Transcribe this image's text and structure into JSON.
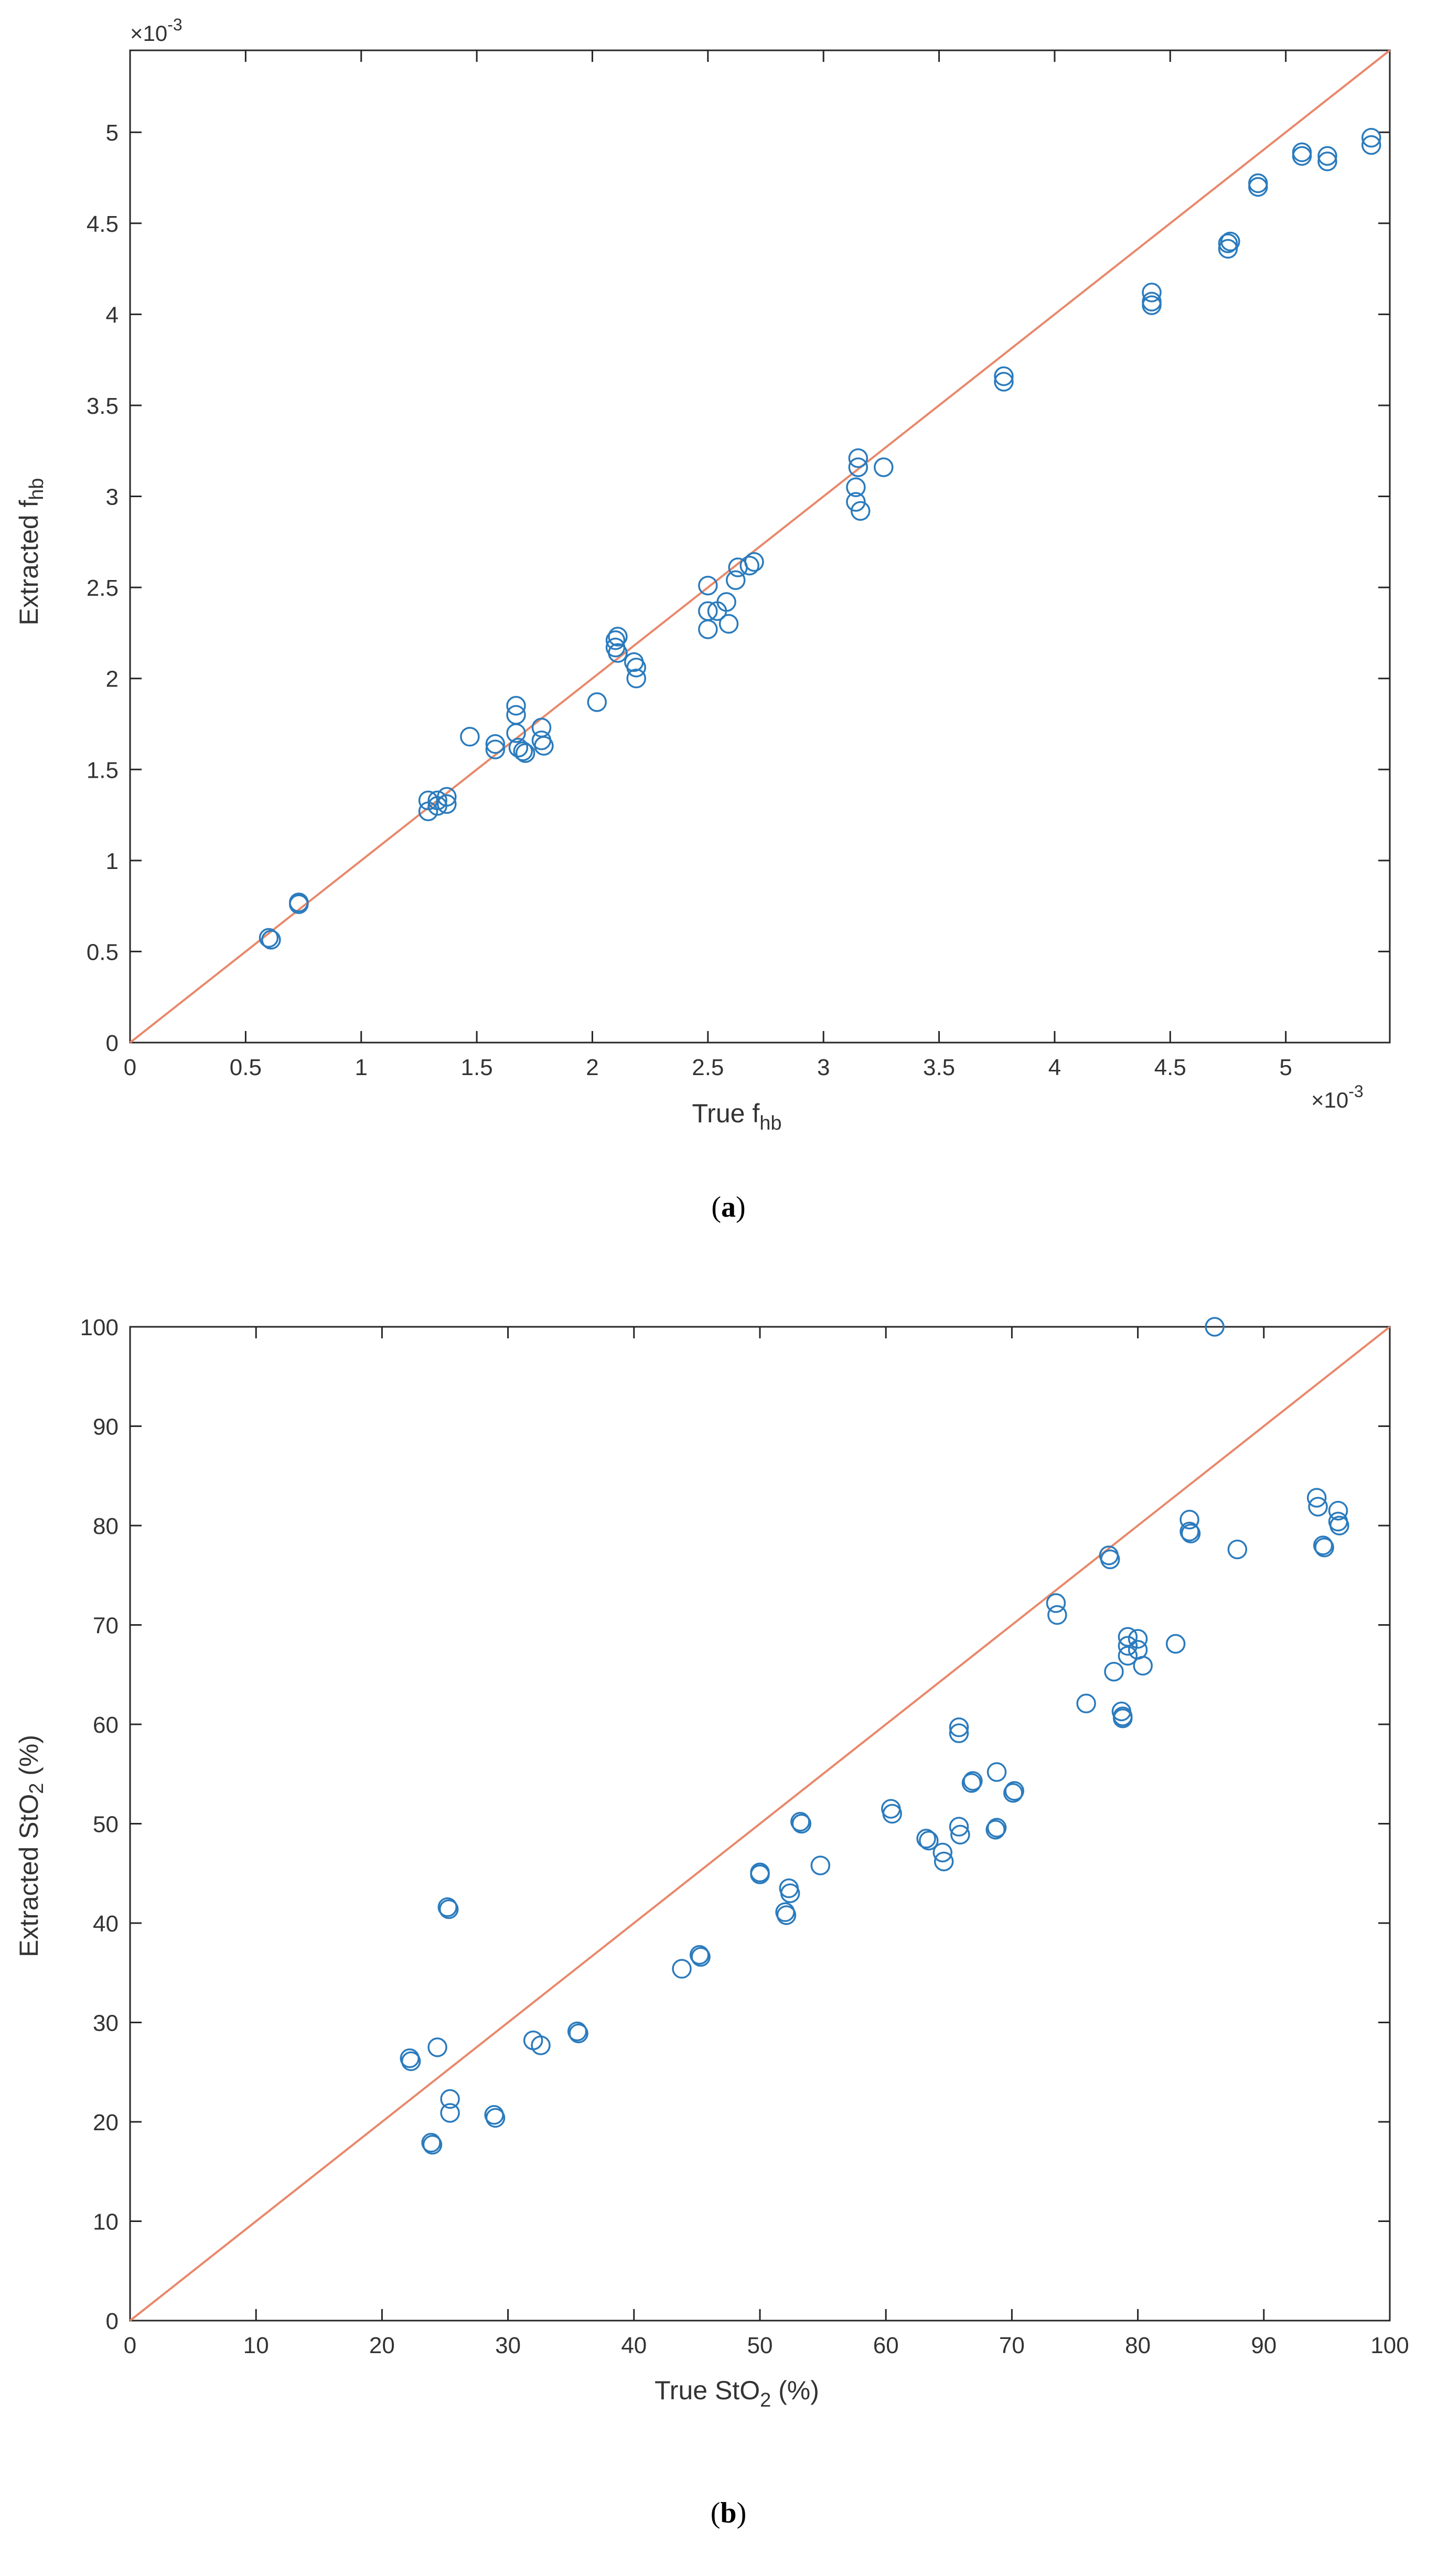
{
  "chart_data": [
    {
      "id": "a",
      "type": "scatter",
      "caption_prefix": "(",
      "caption_letter": "a",
      "caption_suffix": ")",
      "xlabel_main": "True f",
      "xlabel_sub": "hb",
      "ylabel_main": "Extracted f",
      "ylabel_sub": "hb",
      "x_exponent_base": "×10",
      "x_exponent_power": "-3",
      "y_exponent_base": "×10",
      "y_exponent_power": "-3",
      "xlim": [
        0,
        5.45
      ],
      "ylim": [
        0,
        5.45
      ],
      "xticks": [
        0,
        0.5,
        1,
        1.5,
        2,
        2.5,
        3,
        3.5,
        4,
        4.5,
        5
      ],
      "xtick_labels": [
        "0",
        "0.5",
        "1",
        "1.5",
        "2",
        "2.5",
        "3",
        "3.5",
        "4",
        "4.5",
        "5"
      ],
      "yticks": [
        0,
        0.5,
        1,
        1.5,
        2,
        2.5,
        3,
        3.5,
        4,
        4.5,
        5
      ],
      "ytick_labels": [
        "0",
        "0.5",
        "1",
        "1.5",
        "2",
        "2.5",
        "3",
        "3.5",
        "4",
        "4.5",
        "5"
      ],
      "identity_line": [
        [
          0,
          0
        ],
        [
          5.45,
          5.45
        ]
      ],
      "marker_color": "#2b7bbd",
      "line_color": "#e8886a",
      "points": [
        [
          0.6,
          0.575
        ],
        [
          0.61,
          0.565
        ],
        [
          0.73,
          0.77
        ],
        [
          0.73,
          0.76
        ],
        [
          1.29,
          1.33
        ],
        [
          1.29,
          1.27
        ],
        [
          1.33,
          1.3
        ],
        [
          1.33,
          1.33
        ],
        [
          1.37,
          1.35
        ],
        [
          1.37,
          1.31
        ],
        [
          1.47,
          1.68
        ],
        [
          1.58,
          1.64
        ],
        [
          1.58,
          1.61
        ],
        [
          1.67,
          1.85
        ],
        [
          1.67,
          1.8
        ],
        [
          1.67,
          1.7
        ],
        [
          1.68,
          1.62
        ],
        [
          1.7,
          1.6
        ],
        [
          1.71,
          1.59
        ],
        [
          1.78,
          1.73
        ],
        [
          1.78,
          1.66
        ],
        [
          1.79,
          1.63
        ],
        [
          2.02,
          1.87
        ],
        [
          2.1,
          2.21
        ],
        [
          2.1,
          2.17
        ],
        [
          2.11,
          2.23
        ],
        [
          2.11,
          2.14
        ],
        [
          2.18,
          2.09
        ],
        [
          2.19,
          2.06
        ],
        [
          2.19,
          2.0
        ],
        [
          2.5,
          2.51
        ],
        [
          2.5,
          2.37
        ],
        [
          2.5,
          2.27
        ],
        [
          2.54,
          2.37
        ],
        [
          2.58,
          2.42
        ],
        [
          2.59,
          2.3
        ],
        [
          2.62,
          2.54
        ],
        [
          2.63,
          2.61
        ],
        [
          2.68,
          2.62
        ],
        [
          2.7,
          2.64
        ],
        [
          3.14,
          3.05
        ],
        [
          3.14,
          2.97
        ],
        [
          3.15,
          3.21
        ],
        [
          3.15,
          3.16
        ],
        [
          3.16,
          2.92
        ],
        [
          3.26,
          3.16
        ],
        [
          3.78,
          3.66
        ],
        [
          3.78,
          3.63
        ],
        [
          4.42,
          4.12
        ],
        [
          4.42,
          4.07
        ],
        [
          4.42,
          4.05
        ],
        [
          4.75,
          4.39
        ],
        [
          4.75,
          4.36
        ],
        [
          4.76,
          4.4
        ],
        [
          4.88,
          4.72
        ],
        [
          4.88,
          4.7
        ],
        [
          5.07,
          4.89
        ],
        [
          5.07,
          4.87
        ],
        [
          5.18,
          4.87
        ],
        [
          5.18,
          4.84
        ],
        [
          5.37,
          4.97
        ],
        [
          5.37,
          4.93
        ]
      ]
    },
    {
      "id": "b",
      "type": "scatter",
      "caption_prefix": "(",
      "caption_letter": "b",
      "caption_suffix": ")",
      "xlabel_main": "True StO",
      "xlabel_sub": "2",
      "xlabel_end": " (%)",
      "ylabel_main": "Extracted StO",
      "ylabel_sub": "2",
      "ylabel_end": " (%)",
      "xlim": [
        0,
        100
      ],
      "ylim": [
        0,
        100
      ],
      "xticks": [
        0,
        10,
        20,
        30,
        40,
        50,
        60,
        70,
        80,
        90,
        100
      ],
      "xtick_labels": [
        "0",
        "10",
        "20",
        "30",
        "40",
        "50",
        "60",
        "70",
        "80",
        "90",
        "100"
      ],
      "yticks": [
        0,
        10,
        20,
        30,
        40,
        50,
        60,
        70,
        80,
        90,
        100
      ],
      "ytick_labels": [
        "0",
        "10",
        "20",
        "30",
        "40",
        "50",
        "60",
        "70",
        "80",
        "90",
        "100"
      ],
      "identity_line": [
        [
          0,
          0
        ],
        [
          100,
          100
        ]
      ],
      "marker_color": "#2b7bbd",
      "line_color": "#e8886a",
      "points": [
        [
          22.2,
          26.4
        ],
        [
          22.3,
          26.1
        ],
        [
          23.9,
          17.9
        ],
        [
          24.0,
          17.7
        ],
        [
          24.4,
          27.5
        ],
        [
          25.2,
          41.6
        ],
        [
          25.3,
          41.4
        ],
        [
          25.4,
          22.3
        ],
        [
          25.4,
          20.9
        ],
        [
          28.9,
          20.7
        ],
        [
          29.0,
          20.4
        ],
        [
          32.0,
          28.2
        ],
        [
          32.6,
          27.7
        ],
        [
          35.5,
          29.1
        ],
        [
          35.6,
          28.9
        ],
        [
          43.8,
          35.4
        ],
        [
          45.2,
          36.8
        ],
        [
          45.3,
          36.6
        ],
        [
          50.0,
          45.1
        ],
        [
          50.0,
          44.9
        ],
        [
          52.0,
          41.1
        ],
        [
          52.1,
          40.8
        ],
        [
          52.3,
          43.5
        ],
        [
          52.4,
          43.0
        ],
        [
          53.2,
          50.2
        ],
        [
          53.3,
          50.0
        ],
        [
          54.8,
          45.8
        ],
        [
          60.4,
          51.5
        ],
        [
          60.5,
          51.0
        ],
        [
          63.2,
          48.5
        ],
        [
          63.4,
          48.3
        ],
        [
          64.5,
          47.1
        ],
        [
          64.6,
          46.2
        ],
        [
          65.8,
          59.7
        ],
        [
          65.8,
          59.1
        ],
        [
          65.8,
          49.7
        ],
        [
          65.9,
          48.9
        ],
        [
          66.8,
          54.1
        ],
        [
          66.9,
          54.3
        ],
        [
          68.8,
          55.2
        ],
        [
          68.7,
          49.4
        ],
        [
          68.8,
          49.6
        ],
        [
          70.1,
          53.1
        ],
        [
          70.2,
          53.3
        ],
        [
          73.5,
          72.2
        ],
        [
          73.6,
          71.0
        ],
        [
          75.9,
          62.1
        ],
        [
          77.7,
          77.0
        ],
        [
          77.8,
          76.6
        ],
        [
          78.1,
          65.3
        ],
        [
          78.7,
          61.3
        ],
        [
          78.8,
          60.6
        ],
        [
          78.8,
          60.8
        ],
        [
          79.2,
          68.8
        ],
        [
          79.2,
          67.9
        ],
        [
          79.2,
          66.9
        ],
        [
          80.0,
          68.6
        ],
        [
          80.0,
          67.5
        ],
        [
          80.4,
          65.9
        ],
        [
          83.0,
          68.1
        ],
        [
          84.1,
          80.6
        ],
        [
          84.1,
          79.4
        ],
        [
          84.2,
          79.2
        ],
        [
          86.1,
          100.0
        ],
        [
          87.9,
          77.6
        ],
        [
          94.2,
          82.8
        ],
        [
          94.3,
          81.9
        ],
        [
          94.7,
          78.0
        ],
        [
          94.8,
          77.8
        ],
        [
          95.9,
          81.5
        ],
        [
          95.9,
          80.4
        ],
        [
          96.0,
          80.0
        ]
      ]
    }
  ]
}
